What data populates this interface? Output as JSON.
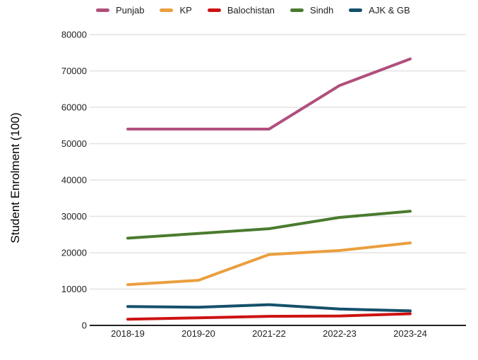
{
  "chart_data": {
    "type": "line",
    "title": "",
    "xlabel": "",
    "ylabel": "Student Enrolment (100)",
    "categories": [
      "2018-19",
      "2019-20",
      "2021-22",
      "2022-23",
      "2023-24"
    ],
    "series": [
      {
        "name": "Punjab",
        "color": "#b04f7c",
        "values": [
          54000,
          54000,
          54000,
          66000,
          73300
        ]
      },
      {
        "name": "KP",
        "color": "#ea9f3e",
        "values": [
          11200,
          12400,
          19500,
          20600,
          22700
        ]
      },
      {
        "name": "Balochistan",
        "color": "#cd1212",
        "values": [
          1700,
          2100,
          2500,
          2600,
          3200
        ]
      },
      {
        "name": "Sindh",
        "color": "#4b7b2f",
        "values": [
          24000,
          25300,
          26600,
          29700,
          31400
        ]
      },
      {
        "name": "AJK & GB",
        "color": "#15506b",
        "values": [
          5200,
          5000,
          5700,
          4500,
          4000
        ]
      }
    ],
    "ylim": [
      0,
      80000
    ],
    "yticks": [
      0,
      10000,
      20000,
      30000,
      40000,
      50000,
      60000,
      70000,
      80000
    ],
    "grid": true,
    "legend_position": "top",
    "gridline_color": "#e3e3e3",
    "axis_line_color": "#212121"
  }
}
